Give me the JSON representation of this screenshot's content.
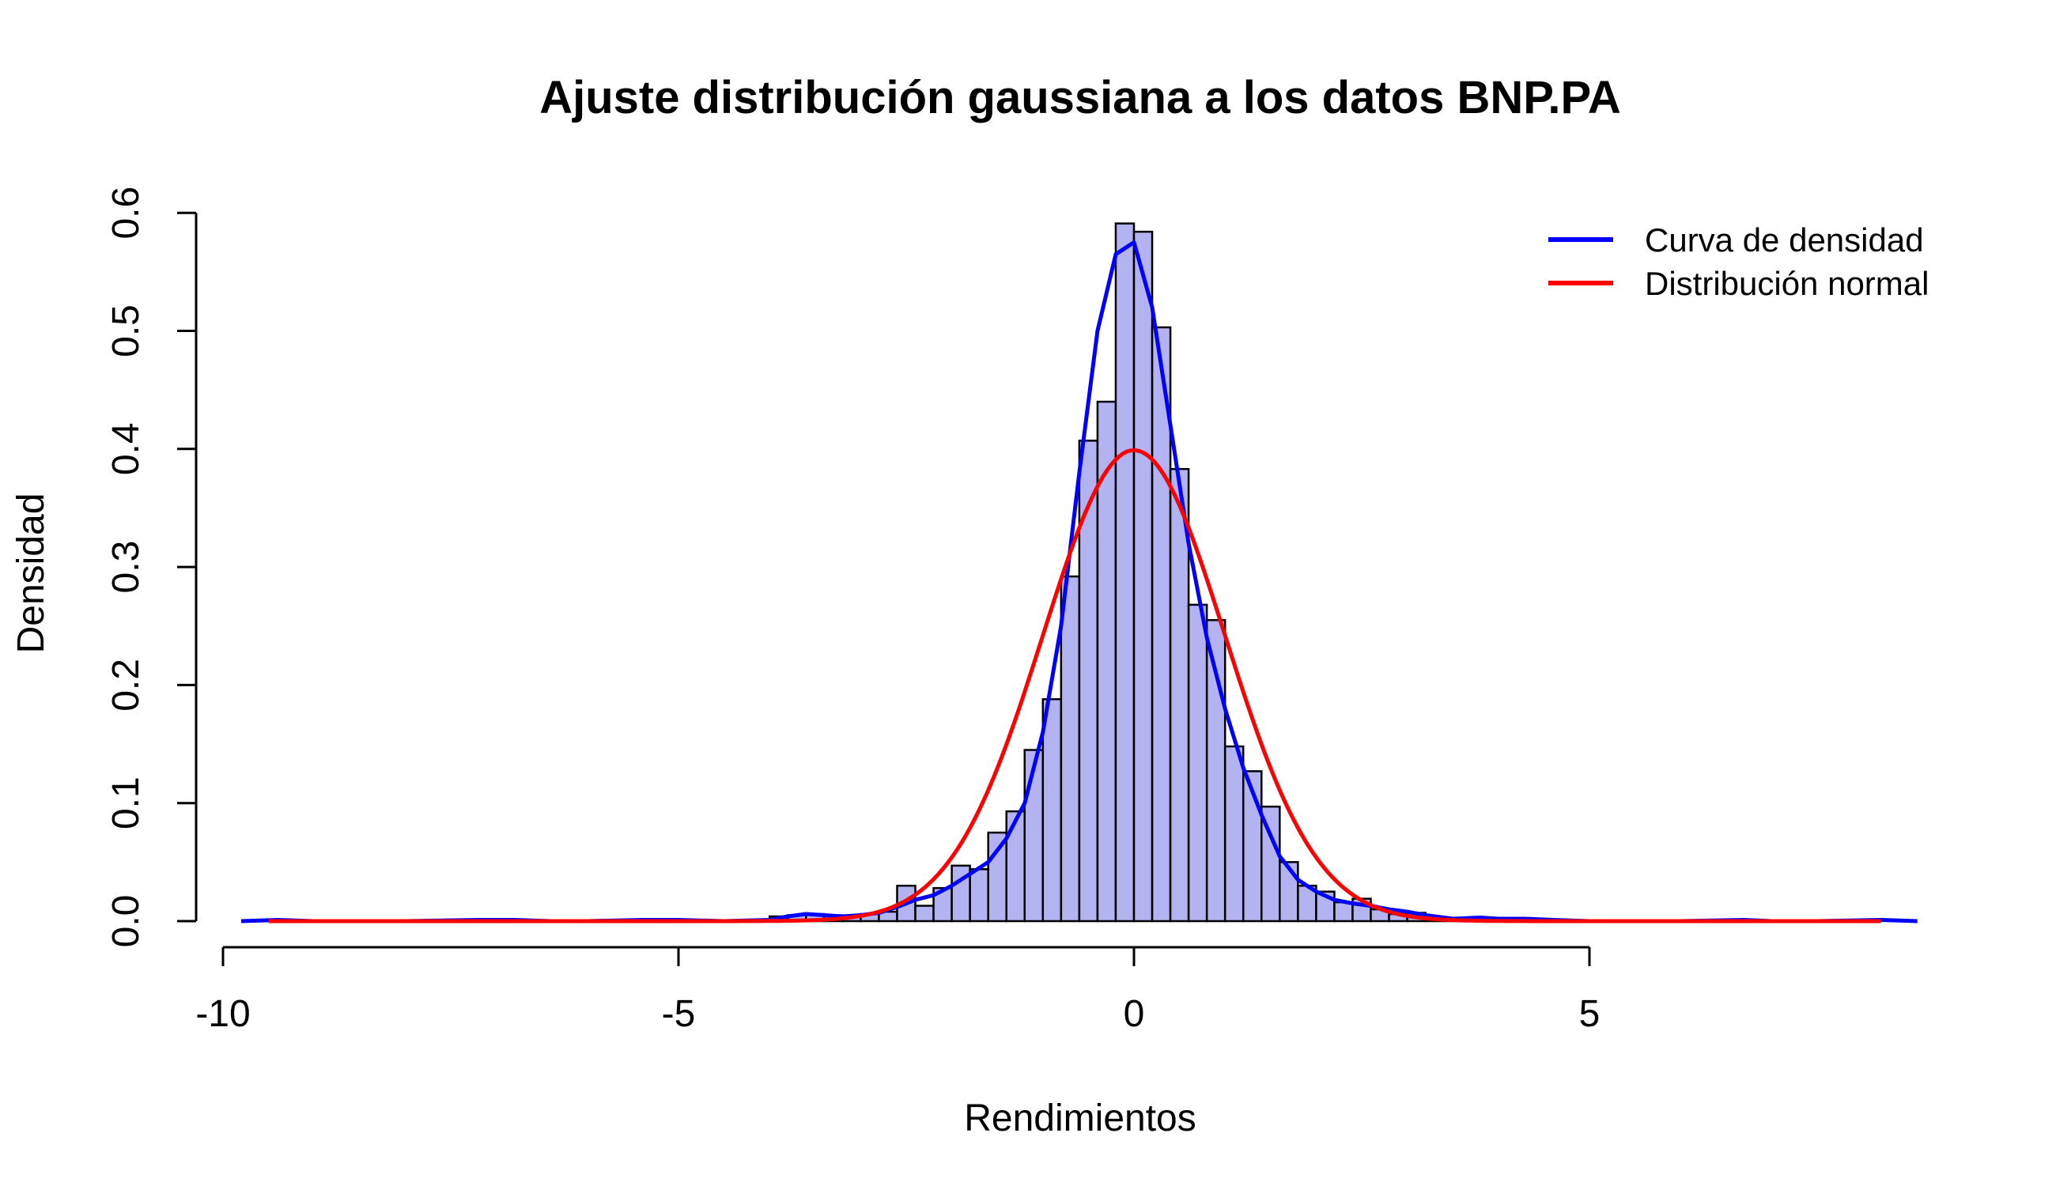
{
  "chart_data": {
    "type": "bar",
    "title": "Ajuste distribución gaussiana a los datos BNP.PA",
    "xlabel": "Rendimientos",
    "ylabel": "Densidad",
    "xlim": [
      -10,
      8.6
    ],
    "ylim": [
      0,
      0.6
    ],
    "x_ticks": [
      -10,
      -5,
      0,
      5
    ],
    "x_tick_labels": [
      "-10",
      "-5",
      "0",
      "5"
    ],
    "y_ticks": [
      0,
      0.1,
      0.2,
      0.3,
      0.4,
      0.5,
      0.6
    ],
    "y_tick_labels": [
      "0.0",
      "0.1",
      "0.2",
      "0.3",
      "0.4",
      "0.5",
      "0.6"
    ],
    "grid": false,
    "legend": {
      "position": "top-right",
      "entries": [
        {
          "label": "Curva de densidad",
          "color": "#0000ff"
        },
        {
          "label": "Distribución normal",
          "color": "#ff0000"
        }
      ]
    },
    "histogram": {
      "fill_color": "#b3b3f2",
      "edge_color": "#000000",
      "bin_width": 0.2,
      "bins": [
        {
          "start": -4.0,
          "density": 0.004
        },
        {
          "start": -3.8,
          "density": 0.005
        },
        {
          "start": -3.6,
          "density": 0.006
        },
        {
          "start": -3.4,
          "density": 0.005
        },
        {
          "start": -3.2,
          "density": 0.004
        },
        {
          "start": -3.0,
          "density": 0.006
        },
        {
          "start": -2.8,
          "density": 0.008
        },
        {
          "start": -2.6,
          "density": 0.03
        },
        {
          "start": -2.4,
          "density": 0.013
        },
        {
          "start": -2.2,
          "density": 0.028
        },
        {
          "start": -2.0,
          "density": 0.047
        },
        {
          "start": -1.8,
          "density": 0.044
        },
        {
          "start": -1.6,
          "density": 0.075
        },
        {
          "start": -1.4,
          "density": 0.093
        },
        {
          "start": -1.2,
          "density": 0.145
        },
        {
          "start": -1.0,
          "density": 0.188
        },
        {
          "start": -0.8,
          "density": 0.292
        },
        {
          "start": -0.6,
          "density": 0.407
        },
        {
          "start": -0.4,
          "density": 0.44
        },
        {
          "start": -0.2,
          "density": 0.591
        },
        {
          "start": 0.0,
          "density": 0.584
        },
        {
          "start": 0.2,
          "density": 0.503
        },
        {
          "start": 0.4,
          "density": 0.383
        },
        {
          "start": 0.6,
          "density": 0.268
        },
        {
          "start": 0.8,
          "density": 0.255
        },
        {
          "start": 1.0,
          "density": 0.148
        },
        {
          "start": 1.2,
          "density": 0.127
        },
        {
          "start": 1.4,
          "density": 0.097
        },
        {
          "start": 1.6,
          "density": 0.05
        },
        {
          "start": 1.8,
          "density": 0.03
        },
        {
          "start": 2.0,
          "density": 0.025
        },
        {
          "start": 2.2,
          "density": 0.016
        },
        {
          "start": 2.4,
          "density": 0.019
        },
        {
          "start": 2.6,
          "density": 0.01
        },
        {
          "start": 2.8,
          "density": 0.006
        },
        {
          "start": 3.0,
          "density": 0.007
        },
        {
          "start": 3.2,
          "density": 0.002
        },
        {
          "start": 3.4,
          "density": 0.001
        }
      ]
    },
    "series": [
      {
        "name": "Curva de densidad",
        "type": "line",
        "color": "#0000ff",
        "x": [
          -9.8,
          -9.4,
          -9.0,
          -8.0,
          -7.2,
          -6.8,
          -6.4,
          -6.0,
          -5.4,
          -5.0,
          -4.5,
          -4.0,
          -3.8,
          -3.6,
          -3.4,
          -3.2,
          -3.0,
          -2.8,
          -2.6,
          -2.4,
          -2.2,
          -2.0,
          -1.8,
          -1.6,
          -1.4,
          -1.2,
          -1.0,
          -0.8,
          -0.6,
          -0.4,
          -0.2,
          0.0,
          0.2,
          0.4,
          0.6,
          0.8,
          1.0,
          1.2,
          1.4,
          1.6,
          1.8,
          2.0,
          2.2,
          2.4,
          2.6,
          2.8,
          3.0,
          3.2,
          3.5,
          3.8,
          4.0,
          4.3,
          4.6,
          5.0,
          6.0,
          6.7,
          7.0,
          7.5,
          8.2,
          8.6
        ],
        "y": [
          0.0,
          0.001,
          0.0,
          0.0,
          0.001,
          0.001,
          0.0,
          0.0,
          0.001,
          0.001,
          0.0,
          0.001,
          0.004,
          0.006,
          0.005,
          0.004,
          0.005,
          0.007,
          0.012,
          0.018,
          0.022,
          0.03,
          0.04,
          0.05,
          0.07,
          0.1,
          0.16,
          0.25,
          0.38,
          0.5,
          0.565,
          0.575,
          0.52,
          0.42,
          0.32,
          0.24,
          0.18,
          0.13,
          0.09,
          0.055,
          0.035,
          0.025,
          0.018,
          0.015,
          0.013,
          0.01,
          0.008,
          0.005,
          0.002,
          0.003,
          0.002,
          0.002,
          0.001,
          0.0,
          0.0,
          0.001,
          0.0,
          0.0,
          0.001,
          0.0
        ]
      },
      {
        "name": "Distribución normal",
        "type": "line",
        "color": "#ff0000",
        "mean": 0,
        "sd": 1,
        "x_range": [
          -9.5,
          8.2
        ]
      }
    ]
  }
}
